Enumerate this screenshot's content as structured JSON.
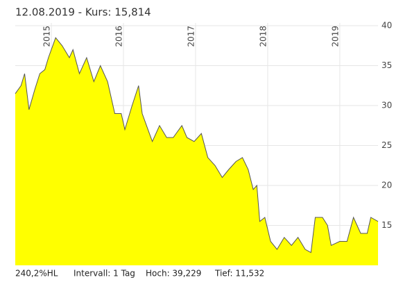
{
  "chart_data": {
    "type": "area",
    "title": "12.08.2019  -  Kurs: 15,814",
    "footer": [
      "240,2%HL",
      "Intervall: 1 Tag",
      "Hoch: 39,229",
      "Tief: 11,532"
    ],
    "x": [
      2014.5,
      2014.58,
      2014.63,
      2014.69,
      2014.77,
      2014.84,
      2014.91,
      2014.96,
      2015.06,
      2015.15,
      2015.25,
      2015.3,
      2015.39,
      2015.49,
      2015.59,
      2015.68,
      2015.78,
      2015.88,
      2015.97,
      2016.02,
      2016.12,
      2016.21,
      2016.26,
      2016.36,
      2016.4,
      2016.5,
      2016.6,
      2016.69,
      2016.81,
      2016.88,
      2016.98,
      2017.08,
      2017.17,
      2017.27,
      2017.37,
      2017.46,
      2017.56,
      2017.65,
      2017.73,
      2017.8,
      2017.85,
      2017.89,
      2017.96,
      2018.04,
      2018.13,
      2018.23,
      2018.33,
      2018.42,
      2018.52,
      2018.6,
      2018.66,
      2018.76,
      2018.83,
      2018.88,
      2019.0,
      2019.1,
      2019.19,
      2019.29,
      2019.38,
      2019.43,
      2019.53
    ],
    "values": [
      31.5,
      32.5,
      34,
      29.5,
      32,
      34,
      34.5,
      36,
      38.5,
      37.5,
      36,
      37,
      34,
      36,
      33,
      35,
      33,
      29,
      29,
      27,
      30,
      32.5,
      29,
      26.5,
      25.5,
      27.5,
      26,
      26,
      27.5,
      26,
      25.5,
      26.5,
      23.5,
      22.5,
      21,
      22,
      23,
      23.5,
      22,
      19.5,
      20,
      15.5,
      16,
      13,
      12,
      13.5,
      12.5,
      13.5,
      12,
      11.6,
      16,
      16,
      15,
      12.5,
      13,
      13,
      16,
      14,
      14,
      16,
      15.5
    ],
    "color": "#ffff00",
    "line_color": "#555555",
    "xlim": [
      2014.5,
      2019.53
    ],
    "xticks": [
      2015,
      2016,
      2017,
      2018,
      2019
    ],
    "ylim": [
      10,
      40
    ],
    "yticks": [
      15,
      20,
      25,
      30,
      35,
      40
    ],
    "grid": true
  }
}
